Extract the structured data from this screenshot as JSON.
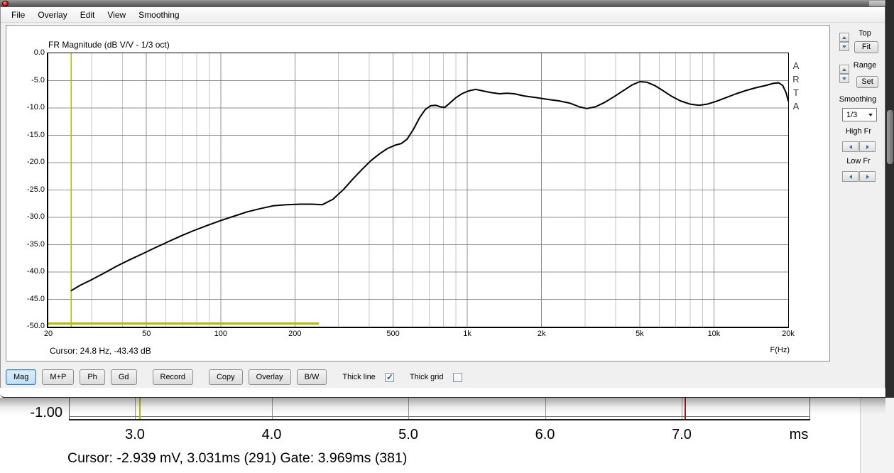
{
  "menu": {
    "items": [
      "File",
      "Overlay",
      "Edit",
      "View",
      "Smoothing"
    ]
  },
  "fr_panel": {
    "cursor_readout": "Cursor: 24.8 Hz, -43.43 dB",
    "freq_axis_label": "F(Hz)",
    "watermark": "ARTA"
  },
  "side_panel": {
    "top_label": "Top",
    "fit_button": "Fit",
    "range_label": "Range",
    "set_button": "Set",
    "smoothing_label": "Smoothing",
    "smoothing_value": "1/3",
    "high_fr_label": "High Fr",
    "low_fr_label": "Low Fr"
  },
  "toolbar": {
    "buttons": [
      {
        "label": "Mag",
        "active": true
      },
      {
        "label": "M+P",
        "active": false
      },
      {
        "label": "Ph",
        "active": false
      },
      {
        "label": "Gd",
        "active": false
      },
      {
        "label": "Record",
        "active": false
      },
      {
        "label": "Copy",
        "active": false
      },
      {
        "label": "Overlay",
        "active": false
      },
      {
        "label": "B/W",
        "active": false
      }
    ],
    "thick_line_label": "Thick line",
    "thick_line_checked": true,
    "thick_grid_label": "Thick grid",
    "thick_grid_checked": false
  },
  "time_strip": {
    "y_tick_label": "-1.00",
    "unit_label": "ms",
    "cursor_readout": "Cursor: -2.939 mV, 3.031ms (291)  Gate: 3.969ms (381)"
  },
  "colors": {
    "cursor_yellow": "#b5b900",
    "marker_red": "#991414",
    "curve_black": "#000000",
    "grid_major": "#8f8f8f",
    "grid_minor": "#c6c6c6",
    "active_button_border": "#3c7fb1"
  },
  "chart_data": [
    {
      "type": "line",
      "title": "FR Magnitude (dB V/V - 1/3 oct)",
      "xlabel": "F(Hz)",
      "x_scale": "log",
      "xlim": [
        20,
        20000
      ],
      "ylim": [
        -50,
        0
      ],
      "grid": "on",
      "legend": "none",
      "y_ticks": [
        "0.0",
        "-5.0",
        "-10.0",
        "-15.0",
        "-20.0",
        "-25.0",
        "-30.0",
        "-35.0",
        "-40.0",
        "-45.0",
        "-50.0"
      ],
      "x_ticks": [
        {
          "value": 20,
          "label": "20"
        },
        {
          "value": 50,
          "label": "50"
        },
        {
          "value": 100,
          "label": "100"
        },
        {
          "value": 200,
          "label": "200"
        },
        {
          "value": 500,
          "label": "500"
        },
        {
          "value": 1000,
          "label": "1k"
        },
        {
          "value": 2000,
          "label": "2k"
        },
        {
          "value": 5000,
          "label": "5k"
        },
        {
          "value": 10000,
          "label": "10k"
        },
        {
          "value": 20000,
          "label": "20k"
        }
      ],
      "series": [
        {
          "name": "FR magnitude, 1/3 octave smoothed",
          "color": "#000000",
          "points": [
            [
              24.8,
              -43.4
            ],
            [
              27,
              -42.4
            ],
            [
              30,
              -41.4
            ],
            [
              34,
              -40.1
            ],
            [
              38,
              -38.9
            ],
            [
              43,
              -37.7
            ],
            [
              48,
              -36.7
            ],
            [
              54,
              -35.6
            ],
            [
              61,
              -34.5
            ],
            [
              69,
              -33.4
            ],
            [
              78,
              -32.4
            ],
            [
              88,
              -31.5
            ],
            [
              100,
              -30.6
            ],
            [
              113,
              -29.8
            ],
            [
              128,
              -29.0
            ],
            [
              145,
              -28.4
            ],
            [
              163,
              -27.9
            ],
            [
              185,
              -27.7
            ],
            [
              210,
              -27.6
            ],
            [
              235,
              -27.6
            ],
            [
              258,
              -27.7
            ],
            [
              285,
              -26.7
            ],
            [
              315,
              -24.9
            ],
            [
              345,
              -22.9
            ],
            [
              375,
              -21.2
            ],
            [
              405,
              -19.7
            ],
            [
              440,
              -18.4
            ],
            [
              475,
              -17.4
            ],
            [
              510,
              -16.8
            ],
            [
              540,
              -16.5
            ],
            [
              570,
              -15.7
            ],
            [
              605,
              -13.9
            ],
            [
              640,
              -11.8
            ],
            [
              675,
              -10.3
            ],
            [
              710,
              -9.6
            ],
            [
              745,
              -9.5
            ],
            [
              780,
              -9.8
            ],
            [
              810,
              -9.9
            ],
            [
              845,
              -9.2
            ],
            [
              900,
              -8.1
            ],
            [
              950,
              -7.4
            ],
            [
              1010,
              -6.9
            ],
            [
              1080,
              -6.6
            ],
            [
              1160,
              -6.9
            ],
            [
              1250,
              -7.2
            ],
            [
              1350,
              -7.4
            ],
            [
              1450,
              -7.3
            ],
            [
              1550,
              -7.4
            ],
            [
              1700,
              -7.8
            ],
            [
              1900,
              -8.1
            ],
            [
              2100,
              -8.4
            ],
            [
              2350,
              -8.7
            ],
            [
              2600,
              -9.1
            ],
            [
              2850,
              -9.8
            ],
            [
              3050,
              -10.1
            ],
            [
              3300,
              -9.8
            ],
            [
              3600,
              -9.0
            ],
            [
              3950,
              -7.9
            ],
            [
              4300,
              -6.8
            ],
            [
              4650,
              -5.8
            ],
            [
              5000,
              -5.2
            ],
            [
              5350,
              -5.3
            ],
            [
              5750,
              -5.9
            ],
            [
              6200,
              -6.8
            ],
            [
              6700,
              -7.8
            ],
            [
              7300,
              -8.7
            ],
            [
              8000,
              -9.3
            ],
            [
              8700,
              -9.5
            ],
            [
              9400,
              -9.3
            ],
            [
              10200,
              -8.8
            ],
            [
              11200,
              -8.1
            ],
            [
              12300,
              -7.4
            ],
            [
              13500,
              -6.8
            ],
            [
              14800,
              -6.3
            ],
            [
              16200,
              -5.9
            ],
            [
              17400,
              -5.5
            ],
            [
              18300,
              -5.4
            ],
            [
              19000,
              -5.9
            ],
            [
              19600,
              -7.2
            ],
            [
              20000,
              -8.7
            ]
          ]
        }
      ],
      "cursor_marker": {
        "freq_hz": 24.8,
        "db": -43.43
      },
      "gate_marker_line": {
        "from_hz": 20,
        "to_hz": 250,
        "db": -49.4
      }
    },
    {
      "type": "line",
      "title": "",
      "xlabel_unit": "ms",
      "x_ticks": [
        {
          "value": 3.0,
          "label": "3.0"
        },
        {
          "value": 4.0,
          "label": "4.0"
        },
        {
          "value": 5.0,
          "label": "5.0"
        },
        {
          "value": 6.0,
          "label": "6.0"
        },
        {
          "value": 7.0,
          "label": "7.0"
        }
      ],
      "y_ticks": [
        "-1.00"
      ],
      "cursor_line_ms": 3.031,
      "red_marker_ms": 7.02,
      "readout": "Cursor: -2.939 mV, 3.031ms (291)  Gate: 3.969ms (381)"
    }
  ]
}
